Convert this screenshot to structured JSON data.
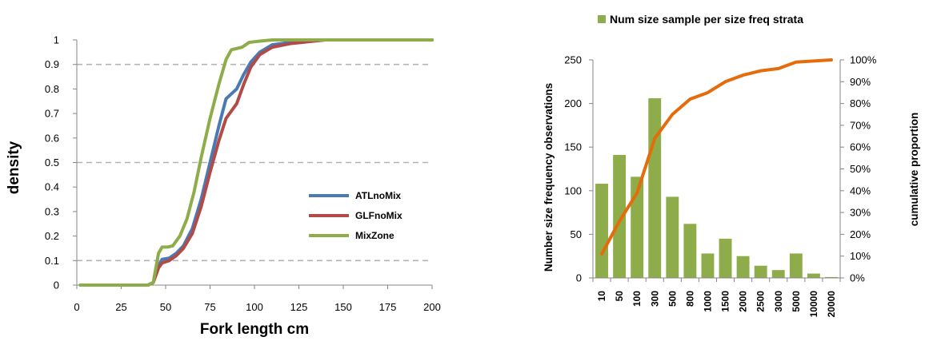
{
  "chart_data": [
    {
      "type": "line",
      "title": "",
      "xlabel": "Fork length cm",
      "ylabel": "density",
      "xlim": [
        0,
        200
      ],
      "ylim": [
        0,
        1
      ],
      "x_ticks": [
        "0",
        "25",
        "50",
        "75",
        "100",
        "125",
        "150",
        "175",
        "200"
      ],
      "y_ticks": [
        "0",
        "0.1",
        "0.2",
        "0.3",
        "0.4",
        "0.5",
        "0.6",
        "0.7",
        "0.8",
        "0.9",
        "1"
      ],
      "gridlines_dashed_at": [
        0.1,
        0.5,
        0.9
      ],
      "legend_position": "right-middle",
      "series": [
        {
          "name": "ATLnoMix",
          "color": "#4a7ab4",
          "points": [
            [
              2,
              0
            ],
            [
              40,
              0
            ],
            [
              43,
              0.01
            ],
            [
              46,
              0.08
            ],
            [
              48,
              0.105
            ],
            [
              52,
              0.11
            ],
            [
              56,
              0.13
            ],
            [
              60,
              0.16
            ],
            [
              65,
              0.23
            ],
            [
              70,
              0.35
            ],
            [
              75,
              0.5
            ],
            [
              80,
              0.65
            ],
            [
              84,
              0.76
            ],
            [
              87,
              0.78
            ],
            [
              90,
              0.8
            ],
            [
              94,
              0.86
            ],
            [
              98,
              0.91
            ],
            [
              103,
              0.95
            ],
            [
              110,
              0.98
            ],
            [
              120,
              0.99
            ],
            [
              135,
              1.0
            ],
            [
              200,
              1.0
            ]
          ]
        },
        {
          "name": "GLFnoMix",
          "color": "#b24b48",
          "points": [
            [
              2,
              0
            ],
            [
              40,
              0
            ],
            [
              43,
              0.01
            ],
            [
              46,
              0.07
            ],
            [
              48,
              0.09
            ],
            [
              52,
              0.1
            ],
            [
              56,
              0.12
            ],
            [
              60,
              0.15
            ],
            [
              65,
              0.21
            ],
            [
              70,
              0.32
            ],
            [
              75,
              0.46
            ],
            [
              80,
              0.59
            ],
            [
              84,
              0.68
            ],
            [
              87,
              0.71
            ],
            [
              90,
              0.74
            ],
            [
              94,
              0.82
            ],
            [
              98,
              0.89
            ],
            [
              103,
              0.94
            ],
            [
              110,
              0.97
            ],
            [
              120,
              0.985
            ],
            [
              140,
              1.0
            ],
            [
              200,
              1.0
            ]
          ]
        },
        {
          "name": "MixZone",
          "color": "#8ead4a",
          "points": [
            [
              2,
              0
            ],
            [
              40,
              0
            ],
            [
              43,
              0.01
            ],
            [
              46,
              0.13
            ],
            [
              48,
              0.155
            ],
            [
              51,
              0.155
            ],
            [
              54,
              0.16
            ],
            [
              58,
              0.2
            ],
            [
              62,
              0.27
            ],
            [
              66,
              0.38
            ],
            [
              70,
              0.52
            ],
            [
              75,
              0.68
            ],
            [
              80,
              0.82
            ],
            [
              84,
              0.92
            ],
            [
              87,
              0.96
            ],
            [
              90,
              0.965
            ],
            [
              93,
              0.97
            ],
            [
              97,
              0.99
            ],
            [
              103,
              0.995
            ],
            [
              110,
              1.0
            ],
            [
              200,
              1.0
            ]
          ]
        }
      ]
    },
    {
      "type": "bar",
      "title": "",
      "legend": [
        "Num size sample per size freq strata"
      ],
      "legend_position": "top",
      "categories": [
        "10",
        "50",
        "100",
        "300",
        "500",
        "800",
        "1000",
        "1500",
        "2000",
        "2500",
        "3000",
        "5000",
        "10000",
        "20000"
      ],
      "series": [
        {
          "name": "Num size sample per size freq strata",
          "kind": "bar",
          "axis": "left",
          "color": "#8ead4a",
          "values": [
            108,
            141,
            116,
            206,
            93,
            62,
            28,
            45,
            25,
            14,
            9,
            28,
            5,
            1
          ]
        },
        {
          "kind": "line",
          "axis": "right",
          "color": "#e46c0a",
          "values": [
            0.11,
            0.26,
            0.39,
            0.64,
            0.75,
            0.82,
            0.85,
            0.9,
            0.93,
            0.95,
            0.96,
            0.99,
            0.995,
            1.0
          ]
        }
      ],
      "ylabel": "Number size frequency observations",
      "y2label": "cumulative proportion",
      "ylim": [
        0,
        250
      ],
      "y_ticks": [
        "0",
        "50",
        "100",
        "150",
        "200",
        "250"
      ],
      "y2lim": [
        0,
        1
      ],
      "y2_ticks": [
        "0%",
        "10%",
        "20%",
        "30%",
        "40%",
        "50%",
        "60%",
        "70%",
        "80%",
        "90%",
        "100%"
      ]
    }
  ]
}
